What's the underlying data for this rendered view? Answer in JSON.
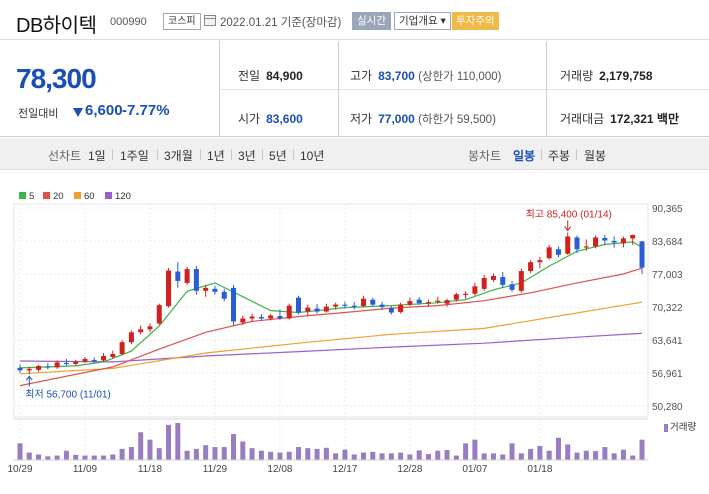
{
  "header": {
    "name": "DB하이텍",
    "code": "000990",
    "market": "코스피",
    "date_text": "2022.01.21 기준(장마감)",
    "realtime_button": "실시간",
    "company_button": "기업개요 ▾",
    "caution_button": "투자주의"
  },
  "price": {
    "current": "78,300",
    "prev_label": "전일대비",
    "change": "6,600",
    "change_pct": "-7.77%"
  },
  "stats": {
    "prev_close_label": "전일",
    "prev_close": "84,900",
    "high_label": "고가",
    "high": "83,700",
    "upper_limit": "(상한가 110,000)",
    "volume_label": "거래량",
    "volume": "2,179,758",
    "open_label": "시가",
    "open": "83,600",
    "low_label": "저가",
    "low": "77,000",
    "lower_limit": "(하한가 59,500)",
    "amount_label": "거래대금",
    "amount": "172,321",
    "amount_unit": "백만"
  },
  "period_bar": {
    "line_chart_label": "선차트",
    "line_periods": [
      "1일",
      "1주일",
      "3개월",
      "1년",
      "3년",
      "5년",
      "10년"
    ],
    "candle_chart_label": "봉차트",
    "candle_periods": [
      "일봉",
      "주봉",
      "월봉"
    ],
    "active_candle": "일봉"
  },
  "legend": [
    "5",
    "20",
    "60",
    "120"
  ],
  "colors": {
    "accent": "#1a4fb5",
    "up": "#d1211f",
    "down": "#2a5cd6",
    "ma5": "#3bb54a",
    "ma20": "#e05050",
    "ma60": "#f0a030",
    "ma120": "#9a60c8",
    "volume": "#9a7cc0"
  },
  "chart_data": {
    "type": "candlestick",
    "y_ticks": [
      "90,365",
      "83,684",
      "77,003",
      "70,322",
      "63,641",
      "56,961",
      "50,280"
    ],
    "ylim": [
      50280,
      90365
    ],
    "x_tick_labels": [
      "10/29",
      "11/09",
      "11/18",
      "11/29",
      "12/08",
      "12/17",
      "12/28",
      "01/07",
      "01/18"
    ],
    "x_tick_index": [
      0,
      7,
      14,
      21,
      28,
      35,
      42,
      49,
      56
    ],
    "high_annotation": "최고 85,400 (01/14)",
    "low_annotation": "최저 56,700 (11/01)",
    "volume_label": "거래량",
    "candles": [
      {
        "o": 58000,
        "h": 58700,
        "l": 57000,
        "c": 57500
      },
      {
        "o": 57500,
        "h": 58200,
        "l": 56700,
        "c": 57800
      },
      {
        "o": 57600,
        "h": 58600,
        "l": 57200,
        "c": 58400
      },
      {
        "o": 58300,
        "h": 59000,
        "l": 57700,
        "c": 58100
      },
      {
        "o": 58100,
        "h": 59500,
        "l": 57800,
        "c": 59100
      },
      {
        "o": 59000,
        "h": 59800,
        "l": 58400,
        "c": 58800
      },
      {
        "o": 58800,
        "h": 59600,
        "l": 58400,
        "c": 59300
      },
      {
        "o": 59300,
        "h": 60200,
        "l": 59000,
        "c": 59800
      },
      {
        "o": 59600,
        "h": 60100,
        "l": 59000,
        "c": 59500
      },
      {
        "o": 59500,
        "h": 61000,
        "l": 59200,
        "c": 60400
      },
      {
        "o": 60200,
        "h": 61500,
        "l": 59800,
        "c": 60800
      },
      {
        "o": 60800,
        "h": 63600,
        "l": 60600,
        "c": 63200
      },
      {
        "o": 63200,
        "h": 65600,
        "l": 62800,
        "c": 65200
      },
      {
        "o": 65200,
        "h": 66600,
        "l": 64800,
        "c": 65800
      },
      {
        "o": 65800,
        "h": 67000,
        "l": 65200,
        "c": 66400
      },
      {
        "o": 67000,
        "h": 71000,
        "l": 66700,
        "c": 70700
      },
      {
        "o": 70500,
        "h": 78200,
        "l": 70200,
        "c": 77700
      },
      {
        "o": 77500,
        "h": 79400,
        "l": 74200,
        "c": 75600
      },
      {
        "o": 75200,
        "h": 78500,
        "l": 74800,
        "c": 78000
      },
      {
        "o": 78000,
        "h": 78600,
        "l": 72800,
        "c": 73600
      },
      {
        "o": 73600,
        "h": 74800,
        "l": 72400,
        "c": 74200
      },
      {
        "o": 74000,
        "h": 74600,
        "l": 72800,
        "c": 73400
      },
      {
        "o": 73400,
        "h": 74000,
        "l": 71500,
        "c": 72000
      },
      {
        "o": 74200,
        "h": 74800,
        "l": 66600,
        "c": 67400
      },
      {
        "o": 67200,
        "h": 68600,
        "l": 66700,
        "c": 68000
      },
      {
        "o": 68000,
        "h": 69000,
        "l": 67400,
        "c": 68400
      },
      {
        "o": 68300,
        "h": 68900,
        "l": 67500,
        "c": 68000
      },
      {
        "o": 68000,
        "h": 68900,
        "l": 67600,
        "c": 68600
      },
      {
        "o": 68500,
        "h": 69800,
        "l": 67700,
        "c": 68000
      },
      {
        "o": 68000,
        "h": 71000,
        "l": 67800,
        "c": 70600
      },
      {
        "o": 72200,
        "h": 72600,
        "l": 68800,
        "c": 69200
      },
      {
        "o": 69400,
        "h": 70800,
        "l": 68600,
        "c": 70200
      },
      {
        "o": 70000,
        "h": 70900,
        "l": 69000,
        "c": 69400
      },
      {
        "o": 69400,
        "h": 71000,
        "l": 69200,
        "c": 70400
      },
      {
        "o": 70400,
        "h": 71200,
        "l": 69800,
        "c": 70800
      },
      {
        "o": 70800,
        "h": 71400,
        "l": 70000,
        "c": 70700
      },
      {
        "o": 70600,
        "h": 71300,
        "l": 69800,
        "c": 70400
      },
      {
        "o": 70500,
        "h": 72500,
        "l": 70200,
        "c": 72000
      },
      {
        "o": 71800,
        "h": 72200,
        "l": 70400,
        "c": 70800
      },
      {
        "o": 70800,
        "h": 71400,
        "l": 69700,
        "c": 70300
      },
      {
        "o": 70100,
        "h": 70500,
        "l": 68800,
        "c": 69200
      },
      {
        "o": 69300,
        "h": 71200,
        "l": 69000,
        "c": 70800
      },
      {
        "o": 70800,
        "h": 72200,
        "l": 70500,
        "c": 71500
      },
      {
        "o": 71800,
        "h": 72300,
        "l": 70700,
        "c": 71100
      },
      {
        "o": 71000,
        "h": 71800,
        "l": 70400,
        "c": 71300
      },
      {
        "o": 71500,
        "h": 72400,
        "l": 71000,
        "c": 71600
      },
      {
        "o": 71000,
        "h": 72000,
        "l": 70400,
        "c": 71700
      },
      {
        "o": 71800,
        "h": 73200,
        "l": 71400,
        "c": 72900
      },
      {
        "o": 72800,
        "h": 73500,
        "l": 72000,
        "c": 73000
      },
      {
        "o": 73000,
        "h": 75200,
        "l": 72600,
        "c": 74500
      },
      {
        "o": 74000,
        "h": 76800,
        "l": 73600,
        "c": 76200
      },
      {
        "o": 75800,
        "h": 77100,
        "l": 75400,
        "c": 76600
      },
      {
        "o": 76400,
        "h": 77400,
        "l": 74200,
        "c": 74800
      },
      {
        "o": 74900,
        "h": 75600,
        "l": 73400,
        "c": 73800
      },
      {
        "o": 73600,
        "h": 78100,
        "l": 73200,
        "c": 77600
      },
      {
        "o": 77600,
        "h": 79800,
        "l": 77200,
        "c": 79400
      },
      {
        "o": 79400,
        "h": 80400,
        "l": 78200,
        "c": 79800
      },
      {
        "o": 80200,
        "h": 82900,
        "l": 79900,
        "c": 82400
      },
      {
        "o": 82000,
        "h": 82600,
        "l": 80400,
        "c": 80900
      },
      {
        "o": 81100,
        "h": 85400,
        "l": 80900,
        "c": 84600
      },
      {
        "o": 84400,
        "h": 84800,
        "l": 81200,
        "c": 82000
      },
      {
        "o": 82400,
        "h": 84000,
        "l": 81700,
        "c": 82600
      },
      {
        "o": 82600,
        "h": 84800,
        "l": 82200,
        "c": 84400
      },
      {
        "o": 84300,
        "h": 84900,
        "l": 82800,
        "c": 83800
      },
      {
        "o": 83700,
        "h": 84600,
        "l": 82300,
        "c": 83400
      },
      {
        "o": 83200,
        "h": 84600,
        "l": 82400,
        "c": 84200
      },
      {
        "o": 84200,
        "h": 85000,
        "l": 82900,
        "c": 84900
      },
      {
        "o": 83600,
        "h": 83700,
        "l": 77000,
        "c": 78300
      }
    ],
    "volumes": [
      0.45,
      0.2,
      0.15,
      0.1,
      0.12,
      0.25,
      0.14,
      0.12,
      0.12,
      0.12,
      0.15,
      0.3,
      0.35,
      0.75,
      0.55,
      0.32,
      0.95,
      1.0,
      0.25,
      0.3,
      0.4,
      0.35,
      0.35,
      0.7,
      0.5,
      0.32,
      0.25,
      0.22,
      0.2,
      0.22,
      0.35,
      0.32,
      0.3,
      0.33,
      0.18,
      0.28,
      0.15,
      0.2,
      0.22,
      0.18,
      0.18,
      0.2,
      0.15,
      0.26,
      0.16,
      0.25,
      0.27,
      0.12,
      0.45,
      0.55,
      0.18,
      0.18,
      0.15,
      0.45,
      0.18,
      0.3,
      0.38,
      0.25,
      0.6,
      0.42,
      0.2,
      0.25,
      0.24,
      0.35,
      0.18,
      0.28,
      0.12,
      0.55
    ],
    "ma5": [
      [
        0,
        58000
      ],
      [
        6,
        58400
      ],
      [
        9,
        59200
      ],
      [
        12,
        61400
      ],
      [
        15,
        66500
      ],
      [
        18,
        73500
      ],
      [
        21,
        75200
      ],
      [
        24,
        72400
      ],
      [
        27,
        69600
      ],
      [
        30,
        69200
      ],
      [
        35,
        70200
      ],
      [
        40,
        70600
      ],
      [
        45,
        71200
      ],
      [
        48,
        71800
      ],
      [
        51,
        73800
      ],
      [
        54,
        75200
      ],
      [
        57,
        78600
      ],
      [
        60,
        81600
      ],
      [
        63,
        83000
      ],
      [
        66,
        83500
      ],
      [
        67,
        82400
      ]
    ],
    "ma20": [
      [
        0,
        54400
      ],
      [
        10,
        58200
      ],
      [
        15,
        61800
      ],
      [
        20,
        65200
      ],
      [
        25,
        67400
      ],
      [
        30,
        68400
      ],
      [
        35,
        69200
      ],
      [
        40,
        70100
      ],
      [
        45,
        70600
      ],
      [
        50,
        71600
      ],
      [
        55,
        73200
      ],
      [
        60,
        75200
      ],
      [
        65,
        77000
      ],
      [
        67,
        78200
      ]
    ],
    "ma60": [
      [
        0,
        56800
      ],
      [
        10,
        57900
      ],
      [
        20,
        61000
      ],
      [
        30,
        63000
      ],
      [
        40,
        64800
      ],
      [
        50,
        66000
      ],
      [
        58,
        68500
      ],
      [
        67,
        71300
      ]
    ],
    "ma120": [
      [
        0,
        59400
      ],
      [
        10,
        59200
      ],
      [
        20,
        60400
      ],
      [
        30,
        61300
      ],
      [
        40,
        62200
      ],
      [
        50,
        63000
      ],
      [
        60,
        64200
      ],
      [
        67,
        65000
      ]
    ]
  }
}
